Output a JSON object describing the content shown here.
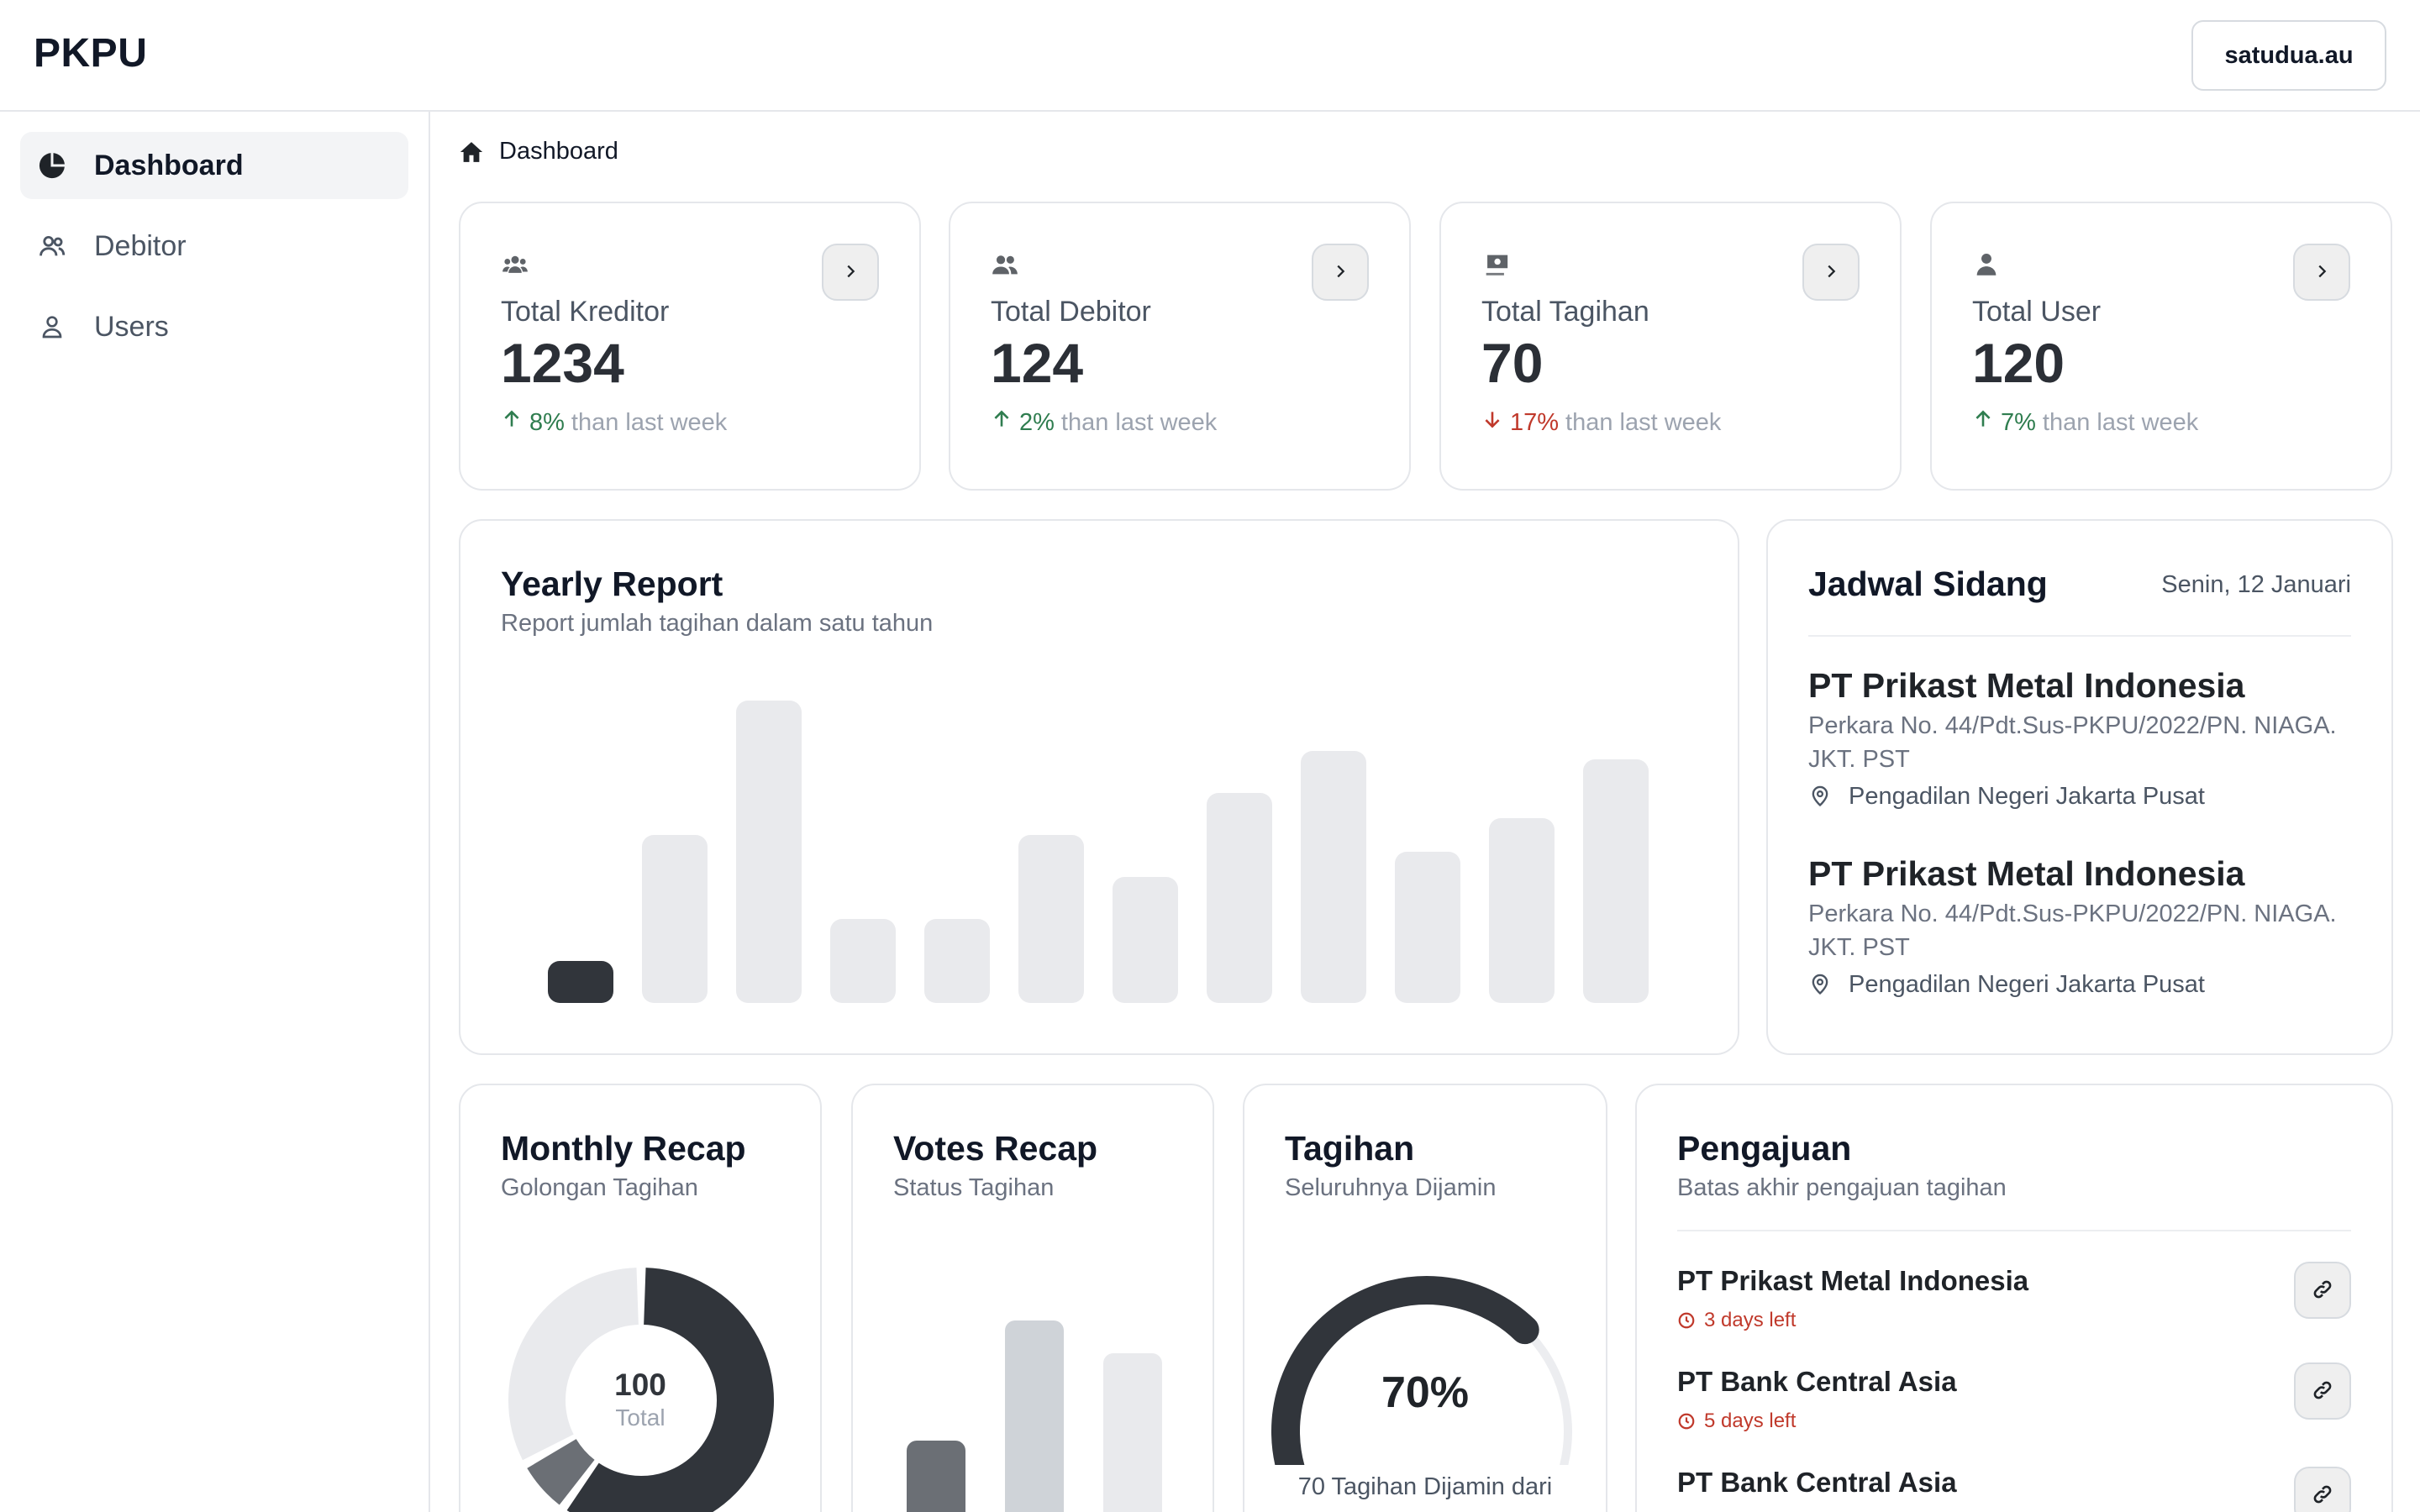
{
  "app": {
    "brand": "PKPU",
    "account": "satudua.au"
  },
  "sidebar": {
    "items": [
      {
        "label": "Dashboard",
        "icon": "pie-chart-icon",
        "active": true
      },
      {
        "label": "Debitor",
        "icon": "users-icon",
        "active": false
      },
      {
        "label": "Users",
        "icon": "user-icon",
        "active": false
      }
    ]
  },
  "breadcrumb": {
    "label": "Dashboard",
    "icon": "home-icon"
  },
  "stats": [
    {
      "label": "Total Kreditor",
      "value": "1234",
      "direction": "up",
      "pct": "8%",
      "rest": "than last week",
      "icon": "user-group-icon"
    },
    {
      "label": "Total Debitor",
      "value": "124",
      "direction": "up",
      "pct": "2%",
      "rest": "than last week",
      "icon": "users-icon"
    },
    {
      "label": "Total Tagihan",
      "value": "70",
      "direction": "down",
      "pct": "17%",
      "rest": "than last week",
      "icon": "money-icon"
    },
    {
      "label": "Total User",
      "value": "120",
      "direction": "up",
      "pct": "7%",
      "rest": "than last week",
      "icon": "user-icon"
    }
  ],
  "yearly": {
    "title": "Yearly Report",
    "subtitle": "Report jumlah tagihan dalam satu tahun"
  },
  "chart_data": [
    {
      "type": "bar",
      "title": "Yearly Report",
      "subtitle": "Report jumlah tagihan dalam satu tahun",
      "values": [
        10,
        40,
        72,
        20,
        20,
        40,
        30,
        50,
        60,
        36,
        44,
        58
      ],
      "highlighted_index": 0,
      "ylim": [
        0,
        72
      ],
      "colors": {
        "highlight": "#31353b",
        "default": "#e9eaed"
      }
    },
    {
      "type": "pie",
      "title": "Monthly Recap",
      "subtitle": "Golongan Tagihan",
      "center_value": "100",
      "center_label": "Total",
      "slices": [
        {
          "value": 60,
          "color": "#31353b"
        },
        {
          "value": 7,
          "color": "#6b6f75"
        },
        {
          "value": 33,
          "color": "#e9eaed"
        }
      ]
    },
    {
      "type": "bar",
      "title": "Votes Recap",
      "subtitle": "Status Tagihan",
      "values": [
        45,
        100,
        85
      ],
      "colors": [
        "#6b6f75",
        "#cfd3d8",
        "#e9eaed"
      ]
    }
  ],
  "jadwal": {
    "title": "Jadwal Sidang",
    "date": "Senin, 12 Januari",
    "cases": [
      {
        "company": "PT Prikast Metal Indonesia",
        "perkara": "Perkara No. 44/Pdt.Sus-PKPU/2022/PN. NIAGA. JKT. PST",
        "location": "Pengadilan Negeri Jakarta Pusat"
      },
      {
        "company": "PT Prikast Metal Indonesia",
        "perkara": "Perkara No. 44/Pdt.Sus-PKPU/2022/PN. NIAGA. JKT. PST",
        "location": "Pengadilan Negeri Jakarta Pusat"
      }
    ]
  },
  "monthly": {
    "title": "Monthly Recap",
    "subtitle": "Golongan Tagihan",
    "center_value": "100",
    "center_label": "Total"
  },
  "votes": {
    "title": "Votes Recap",
    "subtitle": "Status Tagihan"
  },
  "tagihan": {
    "title": "Tagihan",
    "subtitle": "Seluruhnya Dijamin",
    "percent": "70%",
    "percent_value": 70,
    "caption": "70 Tagihan Dijamin dari"
  },
  "pengajuan": {
    "title": "Pengajuan",
    "subtitle": "Batas akhir pengajuan tagihan",
    "items": [
      {
        "name": "PT Prikast Metal Indonesia",
        "days_left": "3 days left"
      },
      {
        "name": "PT Bank Central Asia",
        "days_left": "5 days left"
      },
      {
        "name": "PT Bank Central Asia",
        "days_left": ""
      }
    ]
  }
}
